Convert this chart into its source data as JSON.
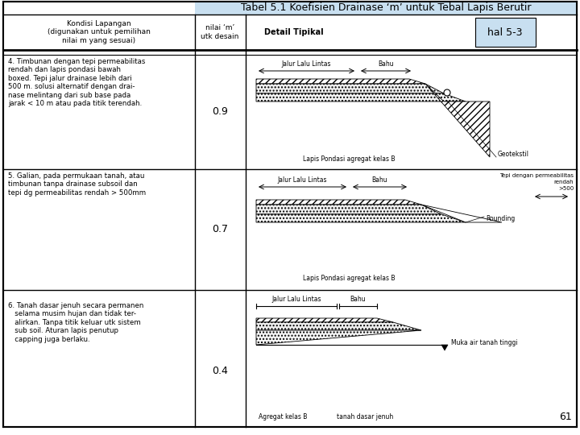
{
  "title": "Tabel 5.1 Koefisien Drainase ‘m’ untuk Tebal Lapis Berutir",
  "title_bg": "#c8dff0",
  "hal_label": "hal 5-3",
  "hal_bg": "#c8dff0",
  "col1_header": "Kondisi Lapangan\n(digunakan untuk pemilihan\nnilai m yang sesuai)",
  "col2_header": "nilai ‘m’\nutk desain",
  "col3_header": "Detail Tipikal",
  "rows": [
    {
      "condition": "4. Timbunan dengan tepi permeabilitas\nrendah dan lapis pondasi bawah\nboxed. Tepi jalur drainase lebih dari\n500 m. solusi alternatif dengan drai-\nnase melintang dari sub base pada\njarak < 10 m atau pada titik terendah.",
      "value": "0.9"
    },
    {
      "condition": "5. Galian, pada permukaan tanah, atau\ntimbunan tanpa drainase subsoil dan\ntepi dg permeabilitas rendah > 500mm",
      "value": "0.7"
    },
    {
      "condition": "6. Tanah dasar jenuh secara permanen\n   selama musim hujan dan tidak ter-\n   alirkan. Tanpa titik keluar utk sistem\n   sub soil. Aturan lapis penutup\n   capping juga berlaku.",
      "value": "0.4"
    }
  ],
  "page_number": "61",
  "bg_color": "#ffffff",
  "border_color": "#000000",
  "text_color": "#000000"
}
